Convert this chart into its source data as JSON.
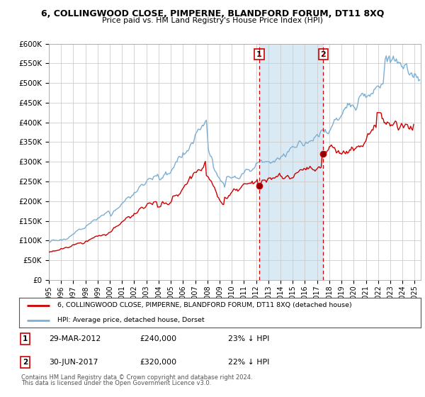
{
  "title": "6, COLLINGWOOD CLOSE, PIMPERNE, BLANDFORD FORUM, DT11 8XQ",
  "subtitle": "Price paid vs. HM Land Registry's House Price Index (HPI)",
  "legend_line1": "6, COLLINGWOOD CLOSE, PIMPERNE, BLANDFORD FORUM, DT11 8XQ (detached house)",
  "legend_line2": "HPI: Average price, detached house, Dorset",
  "footnote1": "Contains HM Land Registry data © Crown copyright and database right 2024.",
  "footnote2": "This data is licensed under the Open Government Licence v3.0.",
  "annotation1_date": "29-MAR-2012",
  "annotation1_price": "£240,000",
  "annotation1_pct": "23% ↓ HPI",
  "annotation2_date": "30-JUN-2017",
  "annotation2_price": "£320,000",
  "annotation2_pct": "22% ↓ HPI",
  "line_color_red": "#cc0000",
  "line_color_blue": "#7bafd4",
  "shade_color": "#daeaf5",
  "annotation_box_color": "#cc0000",
  "ylim": [
    0,
    600000
  ],
  "yticks": [
    0,
    50000,
    100000,
    150000,
    200000,
    250000,
    300000,
    350000,
    400000,
    450000,
    500000,
    550000,
    600000
  ],
  "sale1_year": 2012.25,
  "sale1_value": 240000,
  "sale2_year": 2017.5,
  "sale2_value": 320000,
  "xmin": 1995.0,
  "xmax": 2025.5
}
